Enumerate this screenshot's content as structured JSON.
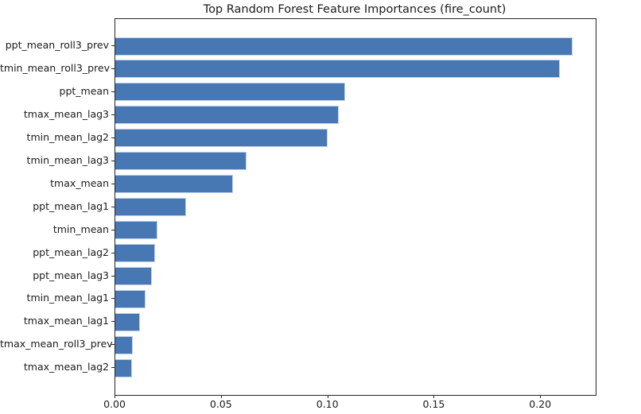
{
  "figure": {
    "background": "#ffffff"
  },
  "chart_data": {
    "type": "bar",
    "orientation": "horizontal",
    "title": "Top Random Forest Feature Importances (fire_count)",
    "xlabel": "",
    "ylabel": "",
    "categories": [
      "ppt_mean_roll3_prev",
      "tmin_mean_roll3_prev",
      "ppt_mean",
      "tmax_mean_lag3",
      "tmin_mean_lag2",
      "tmin_mean_lag3",
      "tmax_mean",
      "ppt_mean_lag1",
      "tmin_mean",
      "ppt_mean_lag2",
      "ppt_mean_lag3",
      "tmin_mean_lag1",
      "tmax_mean_lag1",
      "tmax_mean_roll3_prev",
      "tmax_mean_lag2"
    ],
    "values": [
      0.215,
      0.209,
      0.108,
      0.105,
      0.0996,
      0.0617,
      0.0552,
      0.0331,
      0.0199,
      0.0188,
      0.0172,
      0.0141,
      0.0116,
      0.0081,
      0.008
    ],
    "xtick_labels": [
      "0.00",
      "0.05",
      "0.10",
      "0.15",
      "0.20"
    ],
    "xtick_values": [
      0.0,
      0.05,
      0.1,
      0.15,
      0.2
    ],
    "xlim": [
      0,
      0.2257
    ],
    "grid": false,
    "legend": null,
    "bar_color": "#4878b4",
    "bar_edge_color": "#c3d2e6",
    "spine_color": "#262626",
    "text_color": "#1a1a1a"
  }
}
